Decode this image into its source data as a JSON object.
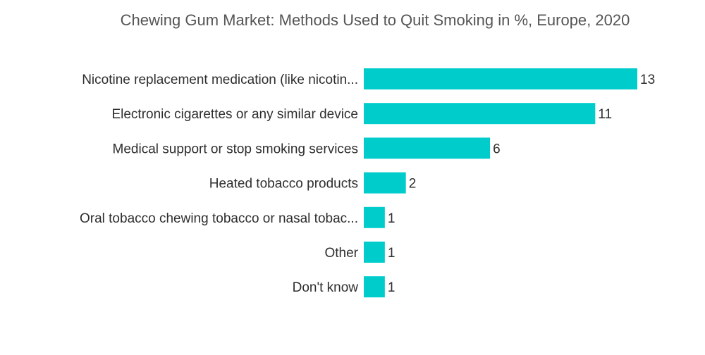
{
  "chart_data": {
    "type": "bar",
    "orientation": "horizontal",
    "title": "Chewing Gum Market: Methods Used to Quit Smoking in %, Europe, 2020",
    "categories": [
      "Nicotine replacement medication (like nicotin...",
      "Electronic cigarettes or any similar device",
      "Medical support or stop smoking services",
      "Heated tobacco products",
      "Oral tobacco chewing tobacco or nasal tobac...",
      "Other",
      "Don't know"
    ],
    "values": [
      13,
      11,
      6,
      2,
      1,
      1,
      1
    ],
    "xlim": [
      0,
      13
    ],
    "bar_color": "#00cccc",
    "grid": false,
    "legend": "none"
  }
}
